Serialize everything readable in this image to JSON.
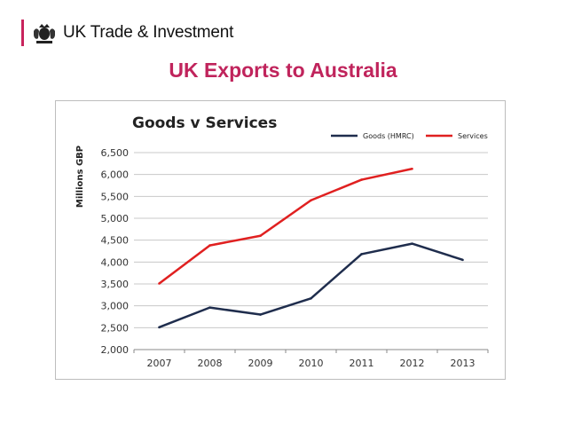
{
  "header": {
    "brand_name": "UK Trade & Investment",
    "slide_title": "UK Exports to Australia"
  },
  "colors": {
    "accent": "#c0245c",
    "goods": "#1f2d4d",
    "services": "#e02020"
  },
  "chart_data": {
    "type": "line",
    "title": "Goods v Services",
    "ylabel": "Millions GBP",
    "xlabel": "",
    "categories": [
      "2007",
      "2008",
      "2009",
      "2010",
      "2011",
      "2012",
      "2013"
    ],
    "ylim": [
      2000,
      6500
    ],
    "yticks": [
      2000,
      2500,
      3000,
      3500,
      4000,
      4500,
      5000,
      5500,
      6000,
      6500
    ],
    "ytick_labels": [
      "2,000",
      "2,500",
      "3,000",
      "3,500",
      "4,000",
      "4,500",
      "5,000",
      "5,500",
      "6,000",
      "6,500"
    ],
    "grid": true,
    "legend": "top-right",
    "series": [
      {
        "name": "Goods (HMRC)",
        "color": "#1f2d4d",
        "values": [
          2510,
          2960,
          2800,
          3170,
          4180,
          4420,
          4050
        ]
      },
      {
        "name": "Services",
        "color": "#e02020",
        "values": [
          3510,
          4380,
          4600,
          5410,
          5880,
          6130,
          null
        ]
      }
    ]
  }
}
